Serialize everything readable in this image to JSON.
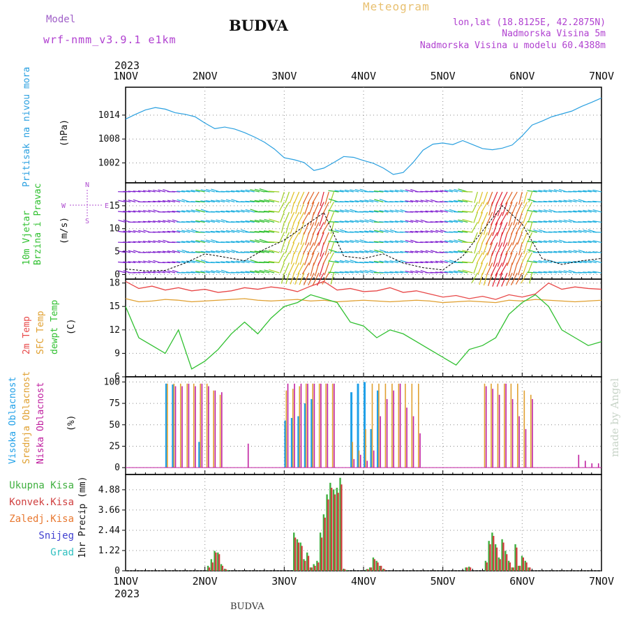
{
  "header": {
    "model_label": "Model",
    "model_name": "wrf-nmm_v3.9.1 e1km",
    "title": "BUDVA",
    "meteogram_label": "Meteogram",
    "coords": "lon,lat (18.8125E, 42.2875N)",
    "elevation": "Nadmorska Visina 5m",
    "model_elevation": "Nadmorska Visina u modelu 60.4388m"
  },
  "footer": {
    "label": "BUDVA"
  },
  "credit": "made by Angel",
  "colors": {
    "pressure": "#2aa0e0",
    "temp2m": "#e84848",
    "sfc": "#e0a030",
    "dewpt": "#30c030",
    "high": "#20a0e8",
    "mid": "#e0a030",
    "low": "#c020a0",
    "total": "#40b040",
    "convective": "#d04040",
    "frozen": "#e87830",
    "snow": "#4040d0",
    "hail": "#30c0c0"
  },
  "chart_data": [
    {
      "type": "line",
      "id": "pressure",
      "title": "",
      "ylabel": "Pritisak na nivou mora",
      "unit": "(hPa)",
      "x_ticks": [
        "1NOV",
        "2NOV",
        "3NOV",
        "4NOV",
        "5NOV",
        "6NOV",
        "7NOV"
      ],
      "year_label": "2023",
      "yticks": [
        "1002",
        "1008",
        "1014"
      ],
      "ylim": [
        997,
        1021
      ],
      "x_hours": [
        0,
        3,
        6,
        9,
        12,
        15,
        18,
        21,
        24,
        27,
        30,
        33,
        36,
        39,
        42,
        45,
        48,
        51,
        54,
        57,
        60,
        63,
        66,
        69,
        72,
        75,
        78,
        81,
        84,
        87,
        90,
        93,
        96,
        99,
        102,
        105,
        108,
        111,
        114,
        117,
        120,
        123,
        126,
        129,
        132,
        135,
        138,
        141,
        144
      ],
      "values": [
        1013.0,
        1014.2,
        1015.3,
        1015.9,
        1015.5,
        1014.6,
        1014.2,
        1013.6,
        1012.0,
        1010.6,
        1011.0,
        1010.5,
        1009.6,
        1008.5,
        1007.2,
        1005.5,
        1003.3,
        1002.8,
        1002.1,
        1000.1,
        1000.7,
        1002.1,
        1003.6,
        1003.4,
        1002.6,
        1001.9,
        1000.7,
        999.1,
        999.6,
        1002.1,
        1005.2,
        1006.7,
        1007.0,
        1006.6,
        1007.6,
        1006.6,
        1005.6,
        1005.3,
        1005.7,
        1006.5,
        1008.8,
        1011.5,
        1012.5,
        1013.6,
        1014.3,
        1015.0,
        1016.2,
        1017.2,
        1018.3
      ]
    },
    {
      "type": "line",
      "id": "wind",
      "title": "",
      "ylabel": "10m Vjetar",
      "ylabel2": "Brzina i Pravac",
      "unit": "(m/s)",
      "compass": {
        "n": "N",
        "s": "S",
        "e": "E",
        "w": "W"
      },
      "yticks": [
        "0",
        "5",
        "10",
        "15"
      ],
      "ylim": [
        -1,
        20
      ],
      "x_hours": [
        0,
        6,
        12,
        18,
        24,
        30,
        36,
        42,
        48,
        54,
        60,
        66,
        72,
        78,
        84,
        90,
        96,
        102,
        108,
        114,
        120,
        126,
        132,
        138,
        144
      ],
      "speed": [
        1.2,
        0.8,
        0.9,
        2.5,
        4.5,
        3.8,
        3.0,
        5.5,
        7.5,
        10.5,
        13.5,
        4.0,
        3.5,
        4.5,
        2.5,
        1.5,
        1.0,
        4.0,
        9.5,
        15.0,
        11.0,
        3.5,
        2.2,
        3.0,
        3.5
      ]
    },
    {
      "type": "line",
      "id": "temperature",
      "title": "",
      "series_labels": [
        "2m Temp",
        "SFC Temp",
        "dewpt Temp"
      ],
      "unit": "(C)",
      "yticks": [
        "6",
        "9",
        "12",
        "15",
        "18"
      ],
      "ylim": [
        6,
        18.5
      ],
      "x_hours": [
        0,
        4,
        8,
        12,
        16,
        20,
        24,
        28,
        32,
        36,
        40,
        44,
        48,
        52,
        56,
        60,
        64,
        68,
        72,
        76,
        80,
        84,
        88,
        92,
        96,
        100,
        104,
        108,
        112,
        116,
        120,
        124,
        128,
        132,
        136,
        140,
        144
      ],
      "series": [
        {
          "name": "2m Temp",
          "values": [
            18.2,
            17.3,
            17.6,
            17.1,
            17.4,
            17.0,
            17.2,
            16.8,
            17.0,
            17.4,
            17.2,
            17.5,
            17.3,
            16.9,
            17.6,
            18.2,
            17.1,
            17.3,
            16.9,
            17.0,
            17.4,
            16.8,
            17.0,
            16.6,
            16.2,
            16.4,
            16.0,
            16.3,
            15.9,
            16.5,
            16.2,
            16.6,
            18.0,
            17.2,
            17.5,
            17.3,
            17.2
          ]
        },
        {
          "name": "SFC Temp",
          "values": [
            16.0,
            15.6,
            15.7,
            15.9,
            15.8,
            15.6,
            15.7,
            15.8,
            15.9,
            16.0,
            15.8,
            15.7,
            15.8,
            15.9,
            15.7,
            15.8,
            15.6,
            15.7,
            15.8,
            15.7,
            15.6,
            15.7,
            15.8,
            15.7,
            15.5,
            15.6,
            15.7,
            15.6,
            15.5,
            15.8,
            15.7,
            15.9,
            15.8,
            15.7,
            15.6,
            15.7,
            15.8
          ]
        },
        {
          "name": "dewpt Temp",
          "values": [
            15.0,
            11.0,
            10.0,
            9.0,
            12.0,
            7.0,
            8.0,
            9.5,
            11.5,
            13.0,
            11.5,
            13.5,
            15.0,
            15.5,
            16.5,
            16.0,
            15.5,
            13.0,
            12.5,
            11.0,
            12.0,
            11.5,
            10.5,
            9.5,
            8.5,
            7.5,
            9.5,
            10.0,
            11.0,
            14.0,
            15.5,
            16.5,
            15.0,
            12.0,
            11.0,
            10.0,
            10.5
          ]
        }
      ]
    },
    {
      "type": "bar",
      "id": "clouds",
      "title": "",
      "series_labels": [
        "Visoka Oblacnost",
        "Srednja Oblacnost",
        "Niska Oblacnost"
      ],
      "unit": "(%)",
      "yticks": [
        "0",
        "25",
        "50",
        "75",
        "100"
      ],
      "ylim": [
        -8,
        106
      ],
      "x_hours": [
        12,
        14,
        16,
        18,
        20,
        22,
        24,
        26,
        28,
        36,
        48,
        50,
        52,
        54,
        56,
        58,
        60,
        62,
        68,
        70,
        72,
        74,
        76,
        78,
        80,
        82,
        84,
        86,
        88,
        108,
        110,
        112,
        114,
        116,
        118,
        120,
        122,
        136,
        138,
        140,
        142
      ],
      "series": [
        {
          "name": "Visoka Oblacnost",
          "values": [
            98,
            97,
            0,
            0,
            0,
            30,
            0,
            0,
            0,
            0,
            55,
            58,
            60,
            75,
            80,
            0,
            0,
            0,
            88,
            98,
            100,
            45,
            90,
            0,
            0,
            0,
            0,
            0,
            0,
            0,
            0,
            0,
            0,
            0,
            0,
            0,
            0,
            0,
            0,
            0,
            0
          ]
        },
        {
          "name": "Srednja Oblacnost",
          "values": [
            98,
            98,
            98,
            98,
            98,
            98,
            98,
            90,
            85,
            0,
            90,
            92,
            95,
            98,
            98,
            98,
            98,
            98,
            30,
            20,
            45,
            98,
            98,
            98,
            98,
            98,
            98,
            98,
            98,
            98,
            98,
            98,
            98,
            98,
            98,
            90,
            85,
            0,
            0,
            0,
            0
          ]
        },
        {
          "name": "Niska Oblacnost",
          "values": [
            0,
            95,
            95,
            98,
            95,
            98,
            95,
            90,
            88,
            28,
            98,
            98,
            98,
            98,
            98,
            98,
            98,
            98,
            10,
            15,
            8,
            20,
            60,
            80,
            90,
            98,
            70,
            60,
            40,
            95,
            92,
            85,
            98,
            80,
            60,
            45,
            80,
            15,
            8,
            5,
            5
          ]
        }
      ]
    },
    {
      "type": "bar",
      "id": "precip",
      "title": "",
      "ylabel": "1hr Precip (mm)",
      "series_labels": [
        "Ukupna Kisa",
        "Konvek.Kisa",
        "Zaledj.Kisa",
        "Snijeg",
        "Grad"
      ],
      "yticks": [
        "0",
        "1.22",
        "2.44",
        "3.66",
        "4.88"
      ],
      "ylim": [
        0,
        5.8
      ],
      "x_hours": [
        25,
        26,
        27,
        28,
        29,
        30,
        31,
        51,
        52,
        53,
        54,
        55,
        56,
        57,
        58,
        59,
        60,
        61,
        62,
        63,
        64,
        65,
        66,
        67,
        73,
        74,
        75,
        76,
        77,
        78,
        103,
        104,
        109,
        110,
        111,
        112,
        113,
        114,
        115,
        116,
        117,
        118,
        119,
        120,
        121,
        122
      ],
      "series": [
        {
          "name": "Ukupna Kisa",
          "values": [
            0.3,
            0.7,
            1.2,
            1.1,
            0.4,
            0.1,
            0.05,
            2.3,
            1.9,
            1.7,
            0.7,
            1.1,
            0.2,
            0.4,
            0.6,
            2.3,
            3.4,
            4.6,
            5.3,
            4.9,
            5.0,
            5.6,
            0.1,
            0.05,
            0.1,
            0.2,
            0.8,
            0.6,
            0.3,
            0.1,
            0.2,
            0.25,
            0.6,
            1.8,
            2.3,
            1.6,
            0.8,
            1.9,
            1.2,
            0.6,
            0.2,
            1.6,
            0.3,
            0.9,
            0.6,
            0.2
          ]
        },
        {
          "name": "Konvek.Kisa",
          "values": [
            0.2,
            0.5,
            1.1,
            1.0,
            0.3,
            0.1,
            0.0,
            2.0,
            1.7,
            1.5,
            0.6,
            0.9,
            0.2,
            0.3,
            0.5,
            2.0,
            3.2,
            4.3,
            5.0,
            4.6,
            4.7,
            5.2,
            0.1,
            0.0,
            0.1,
            0.2,
            0.7,
            0.5,
            0.3,
            0.1,
            0.2,
            0.2,
            0.5,
            1.6,
            2.1,
            1.4,
            0.7,
            1.7,
            1.0,
            0.5,
            0.2,
            1.4,
            0.3,
            0.8,
            0.5,
            0.2
          ]
        }
      ]
    }
  ]
}
